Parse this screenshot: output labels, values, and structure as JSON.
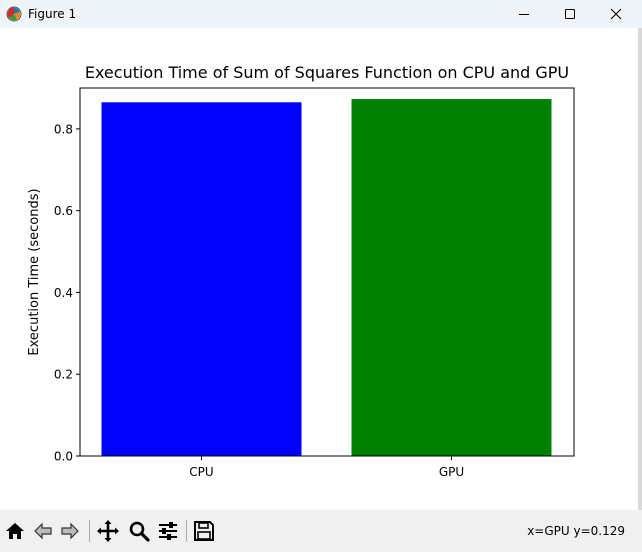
{
  "window": {
    "title": "Figure 1"
  },
  "toolbar": {
    "buttons": [
      "home-icon",
      "back-arrow-icon",
      "forward-arrow-icon",
      "pan-icon",
      "zoom-icon",
      "configure-subplots-icon",
      "save-icon"
    ],
    "coordinate_readout": "x=GPU y=0.129"
  },
  "colors": {
    "cpu_bar": "#0000ff",
    "gpu_bar": "#008000"
  },
  "chart_data": {
    "type": "bar",
    "title": "Execution Time of Sum of Squares Function on CPU and GPU",
    "xlabel": "",
    "ylabel": "Execution Time (seconds)",
    "categories": [
      "CPU",
      "GPU"
    ],
    "values": [
      0.865,
      0.873
    ],
    "colors": [
      "#0000ff",
      "#008000"
    ],
    "ylim": [
      0,
      0.9
    ],
    "yticks": [
      0.0,
      0.2,
      0.4,
      0.6,
      0.8
    ],
    "ytick_labels": [
      "0.0",
      "0.2",
      "0.4",
      "0.6",
      "0.8"
    ],
    "grid": false,
    "legend": "none"
  }
}
